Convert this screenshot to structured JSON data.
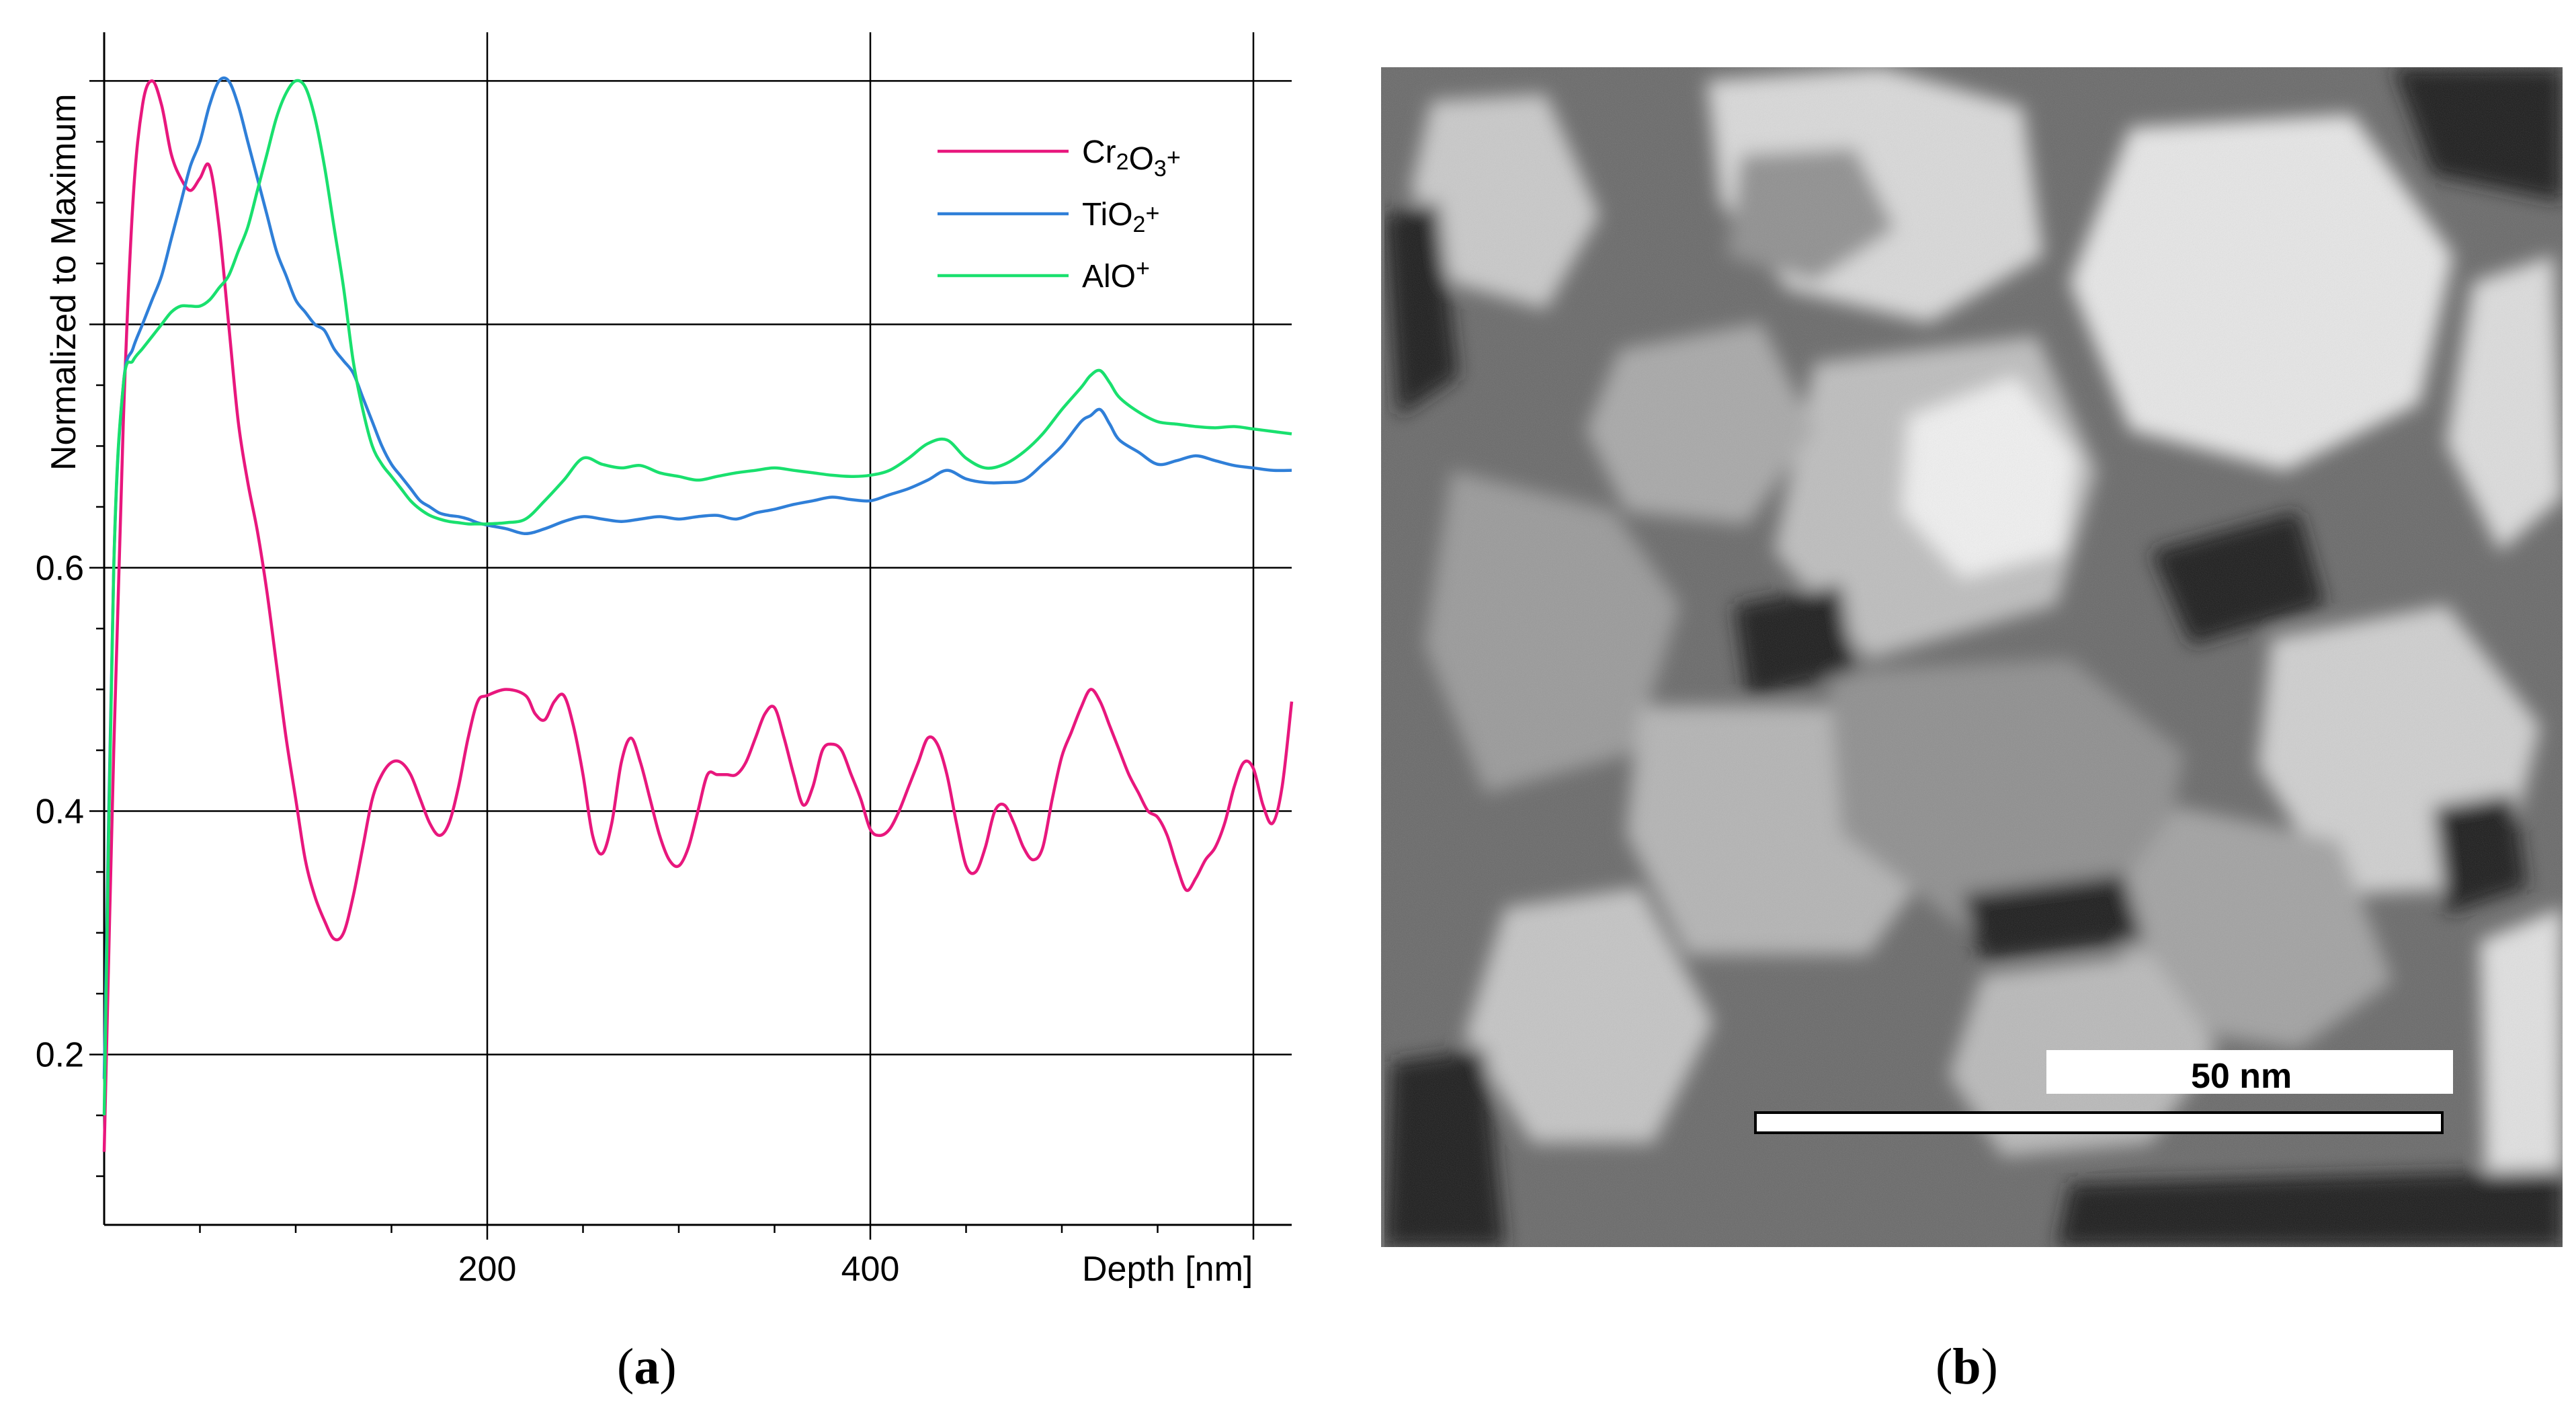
{
  "panel_a": {
    "caption_letter": "a",
    "caption_open": "(",
    "caption_close": ")"
  },
  "panel_b": {
    "caption_letter": "b",
    "caption_open": "(",
    "caption_close": ")",
    "scale_bar_label": "50 nm",
    "image_kind": "grayscale SEM micrograph of grains"
  },
  "chart_data": {
    "type": "line",
    "title": "",
    "xlabel": "Depth [nm]",
    "ylabel": "Normalized to Maximum",
    "xlim": [
      0,
      620
    ],
    "ylim": [
      0.06,
      1.04
    ],
    "x_ticks": [
      200,
      400
    ],
    "x_tick_labels": [
      "200",
      "400"
    ],
    "y_ticks": [
      0.2,
      0.4,
      0.6
    ],
    "y_tick_labels": [
      "0.2",
      "0.4",
      "0.6"
    ],
    "grid": true,
    "legend_position": "top-right",
    "series": [
      {
        "name": "Cr2O3+",
        "display": [
          "Cr",
          "2",
          "O",
          "3",
          "+"
        ],
        "color": "#e8177d",
        "x": [
          0,
          5,
          10,
          15,
          20,
          25,
          30,
          35,
          40,
          45,
          50,
          55,
          60,
          65,
          70,
          75,
          80,
          85,
          90,
          95,
          100,
          105,
          110,
          115,
          120,
          125,
          130,
          135,
          140,
          145,
          150,
          155,
          160,
          165,
          170,
          175,
          180,
          185,
          190,
          195,
          200,
          210,
          220,
          225,
          230,
          235,
          240,
          245,
          250,
          255,
          260,
          265,
          270,
          275,
          280,
          285,
          290,
          295,
          300,
          305,
          310,
          315,
          320,
          325,
          330,
          335,
          340,
          345,
          350,
          355,
          360,
          365,
          370,
          375,
          380,
          385,
          390,
          395,
          400,
          405,
          410,
          415,
          420,
          425,
          430,
          435,
          440,
          445,
          450,
          455,
          460,
          465,
          470,
          475,
          480,
          485,
          490,
          495,
          500,
          505,
          510,
          515,
          520,
          525,
          530,
          535,
          540,
          545,
          550,
          555,
          560,
          565,
          570,
          575,
          580,
          585,
          590,
          595,
          600,
          605,
          610,
          615,
          620
        ],
        "y": [
          0.12,
          0.45,
          0.72,
          0.9,
          0.98,
          1.0,
          0.98,
          0.94,
          0.92,
          0.91,
          0.92,
          0.93,
          0.88,
          0.8,
          0.72,
          0.67,
          0.63,
          0.58,
          0.52,
          0.46,
          0.41,
          0.36,
          0.33,
          0.31,
          0.295,
          0.3,
          0.33,
          0.37,
          0.41,
          0.43,
          0.44,
          0.44,
          0.43,
          0.41,
          0.39,
          0.38,
          0.39,
          0.42,
          0.46,
          0.49,
          0.495,
          0.5,
          0.495,
          0.48,
          0.475,
          0.49,
          0.495,
          0.47,
          0.43,
          0.38,
          0.365,
          0.39,
          0.44,
          0.46,
          0.44,
          0.41,
          0.38,
          0.36,
          0.355,
          0.37,
          0.4,
          0.43,
          0.43,
          0.43,
          0.43,
          0.44,
          0.46,
          0.48,
          0.485,
          0.46,
          0.43,
          0.405,
          0.42,
          0.45,
          0.455,
          0.45,
          0.43,
          0.41,
          0.385,
          0.38,
          0.385,
          0.4,
          0.42,
          0.44,
          0.46,
          0.455,
          0.43,
          0.39,
          0.355,
          0.35,
          0.37,
          0.4,
          0.405,
          0.39,
          0.37,
          0.36,
          0.37,
          0.41,
          0.445,
          0.465,
          0.485,
          0.5,
          0.49,
          0.47,
          0.45,
          0.43,
          0.415,
          0.4,
          0.395,
          0.38,
          0.355,
          0.335,
          0.345,
          0.36,
          0.37,
          0.39,
          0.42,
          0.44,
          0.435,
          0.405,
          0.39,
          0.42,
          0.49
        ]
      },
      {
        "name": "TiO2+",
        "display": [
          "TiO",
          "2",
          "+"
        ],
        "color": "#2f7fd8",
        "x": [
          0,
          5,
          10,
          15,
          20,
          25,
          30,
          35,
          40,
          45,
          50,
          55,
          60,
          65,
          70,
          75,
          80,
          85,
          90,
          95,
          100,
          105,
          110,
          115,
          120,
          125,
          130,
          135,
          140,
          145,
          150,
          155,
          160,
          165,
          170,
          175,
          180,
          185,
          190,
          195,
          200,
          210,
          220,
          230,
          240,
          250,
          260,
          270,
          280,
          290,
          300,
          310,
          320,
          330,
          340,
          350,
          360,
          370,
          380,
          390,
          400,
          410,
          420,
          430,
          440,
          450,
          460,
          470,
          480,
          490,
          500,
          510,
          515,
          520,
          525,
          530,
          540,
          550,
          560,
          570,
          580,
          590,
          600,
          610,
          620
        ],
        "y": [
          0.18,
          0.6,
          0.75,
          0.78,
          0.8,
          0.82,
          0.84,
          0.87,
          0.9,
          0.93,
          0.95,
          0.98,
          1.0,
          1.0,
          0.98,
          0.95,
          0.92,
          0.89,
          0.86,
          0.84,
          0.82,
          0.81,
          0.8,
          0.795,
          0.78,
          0.77,
          0.76,
          0.74,
          0.72,
          0.7,
          0.685,
          0.675,
          0.665,
          0.655,
          0.65,
          0.645,
          0.643,
          0.642,
          0.64,
          0.637,
          0.635,
          0.632,
          0.628,
          0.632,
          0.638,
          0.642,
          0.64,
          0.638,
          0.64,
          0.642,
          0.64,
          0.642,
          0.643,
          0.64,
          0.645,
          0.648,
          0.652,
          0.655,
          0.658,
          0.656,
          0.655,
          0.66,
          0.665,
          0.672,
          0.68,
          0.673,
          0.67,
          0.67,
          0.672,
          0.685,
          0.7,
          0.72,
          0.725,
          0.73,
          0.718,
          0.705,
          0.695,
          0.685,
          0.688,
          0.692,
          0.688,
          0.684,
          0.682,
          0.68,
          0.68
        ]
      },
      {
        "name": "AlO+",
        "display": [
          "AlO",
          "+"
        ],
        "color": "#19e06e",
        "x": [
          0,
          5,
          10,
          15,
          20,
          25,
          30,
          35,
          40,
          45,
          50,
          55,
          60,
          65,
          70,
          75,
          80,
          85,
          90,
          95,
          100,
          105,
          110,
          115,
          120,
          125,
          130,
          135,
          140,
          145,
          150,
          155,
          160,
          165,
          170,
          175,
          180,
          185,
          190,
          195,
          200,
          210,
          220,
          230,
          240,
          250,
          260,
          270,
          280,
          290,
          300,
          310,
          320,
          330,
          340,
          350,
          360,
          370,
          380,
          390,
          400,
          410,
          420,
          430,
          440,
          450,
          460,
          470,
          480,
          490,
          500,
          510,
          515,
          520,
          525,
          530,
          540,
          550,
          560,
          570,
          580,
          590,
          600,
          610,
          620
        ],
        "y": [
          0.15,
          0.6,
          0.75,
          0.77,
          0.78,
          0.79,
          0.8,
          0.81,
          0.815,
          0.815,
          0.815,
          0.82,
          0.83,
          0.84,
          0.86,
          0.88,
          0.91,
          0.94,
          0.97,
          0.99,
          1.0,
          0.995,
          0.97,
          0.93,
          0.88,
          0.83,
          0.77,
          0.73,
          0.7,
          0.685,
          0.675,
          0.665,
          0.655,
          0.648,
          0.643,
          0.64,
          0.638,
          0.637,
          0.636,
          0.636,
          0.636,
          0.637,
          0.64,
          0.655,
          0.672,
          0.69,
          0.685,
          0.682,
          0.684,
          0.678,
          0.675,
          0.672,
          0.675,
          0.678,
          0.68,
          0.682,
          0.68,
          0.678,
          0.676,
          0.675,
          0.676,
          0.68,
          0.69,
          0.702,
          0.705,
          0.69,
          0.682,
          0.685,
          0.695,
          0.71,
          0.73,
          0.748,
          0.758,
          0.762,
          0.752,
          0.74,
          0.728,
          0.72,
          0.718,
          0.716,
          0.715,
          0.716,
          0.714,
          0.712,
          0.71
        ]
      }
    ]
  }
}
